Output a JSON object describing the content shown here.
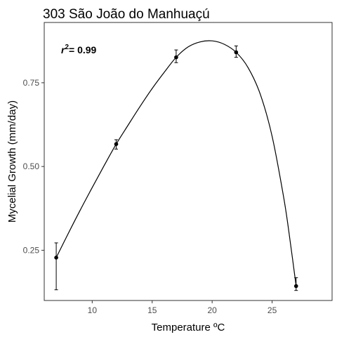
{
  "chart_data": {
    "type": "scatter",
    "title": "303 São João do Manhuaçú",
    "xlabel": "Temperature ºC",
    "ylabel": "Mycelial Growth (mm/day)",
    "xlim": [
      6,
      30
    ],
    "ylim": [
      0.1,
      0.93
    ],
    "xticks": [
      10,
      15,
      20,
      25
    ],
    "yticks": [
      0.25,
      0.5,
      0.75
    ],
    "xtick_labels": [
      "10",
      "15",
      "20",
      "25"
    ],
    "ytick_labels": [
      "0.25",
      "0.50",
      "0.75"
    ],
    "grid": false,
    "points": [
      {
        "x": 7,
        "y": 0.228,
        "err_low": 0.132,
        "err_high": 0.272
      },
      {
        "x": 12,
        "y": 0.567,
        "err_low": 0.552,
        "err_high": 0.58
      },
      {
        "x": 17,
        "y": 0.826,
        "err_low": 0.81,
        "err_high": 0.848
      },
      {
        "x": 22,
        "y": 0.841,
        "err_low": 0.826,
        "err_high": 0.86
      },
      {
        "x": 27,
        "y": 0.143,
        "err_low": 0.13,
        "err_high": 0.168
      }
    ],
    "fit_curve": [
      [
        7,
        0.228
      ],
      [
        8,
        0.3
      ],
      [
        9,
        0.37
      ],
      [
        10,
        0.437
      ],
      [
        11,
        0.503
      ],
      [
        12,
        0.567
      ],
      [
        13,
        0.624
      ],
      [
        14,
        0.68
      ],
      [
        15,
        0.733
      ],
      [
        16,
        0.781
      ],
      [
        17,
        0.826
      ],
      [
        18,
        0.857
      ],
      [
        19,
        0.872
      ],
      [
        20,
        0.875
      ],
      [
        21,
        0.865
      ],
      [
        22,
        0.841
      ],
      [
        23,
        0.795
      ],
      [
        24,
        0.717
      ],
      [
        25,
        0.59
      ],
      [
        26,
        0.4
      ],
      [
        26.5,
        0.278
      ],
      [
        27,
        0.143
      ]
    ],
    "annotation": {
      "label": "r",
      "exponent": "2",
      "value": "= 0.99"
    }
  }
}
